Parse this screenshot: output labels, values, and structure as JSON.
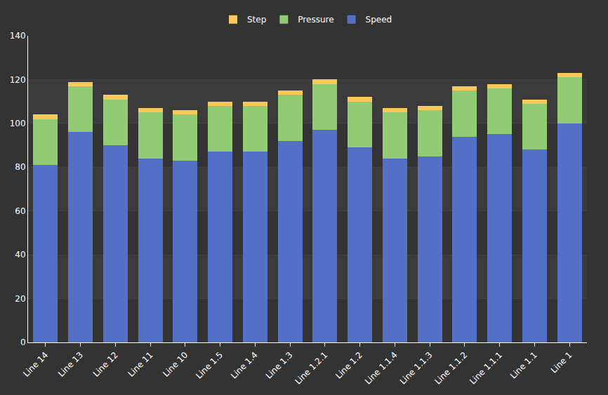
{
  "chart_data": {
    "type": "bar",
    "stacked": true,
    "legend": "top",
    "grid": true,
    "categories": [
      "Line 14",
      "Line 13",
      "Line 12",
      "Line 11",
      "Line 10",
      "Line 1.5",
      "Line 1.4",
      "Line 1.3",
      "Line 1.2.1",
      "Line 1.2",
      "Line 1.1.4",
      "Line 1.1.3",
      "Line 1.1.2",
      "Line 1.1.1",
      "Line 1.1",
      "Line 1"
    ],
    "series": [
      {
        "name": "Speed",
        "color": "#5470c6",
        "values": [
          81,
          96,
          90,
          84,
          83,
          87,
          87,
          92,
          97,
          89,
          84,
          85,
          94,
          95,
          88,
          100
        ]
      },
      {
        "name": "Pressure",
        "color": "#91cc75",
        "values": [
          21,
          21,
          21,
          21,
          21,
          21,
          21,
          21,
          21,
          21,
          21,
          21,
          21,
          21,
          21,
          21
        ]
      },
      {
        "name": "Step",
        "color": "#fac858",
        "values": [
          2,
          2,
          2,
          2,
          2,
          2,
          2,
          2,
          2,
          2,
          2,
          2,
          2,
          2,
          2,
          2
        ]
      }
    ],
    "ylim": [
      0,
      140
    ],
    "yticks": [
      0,
      20,
      40,
      60,
      80,
      100,
      120,
      140
    ]
  }
}
